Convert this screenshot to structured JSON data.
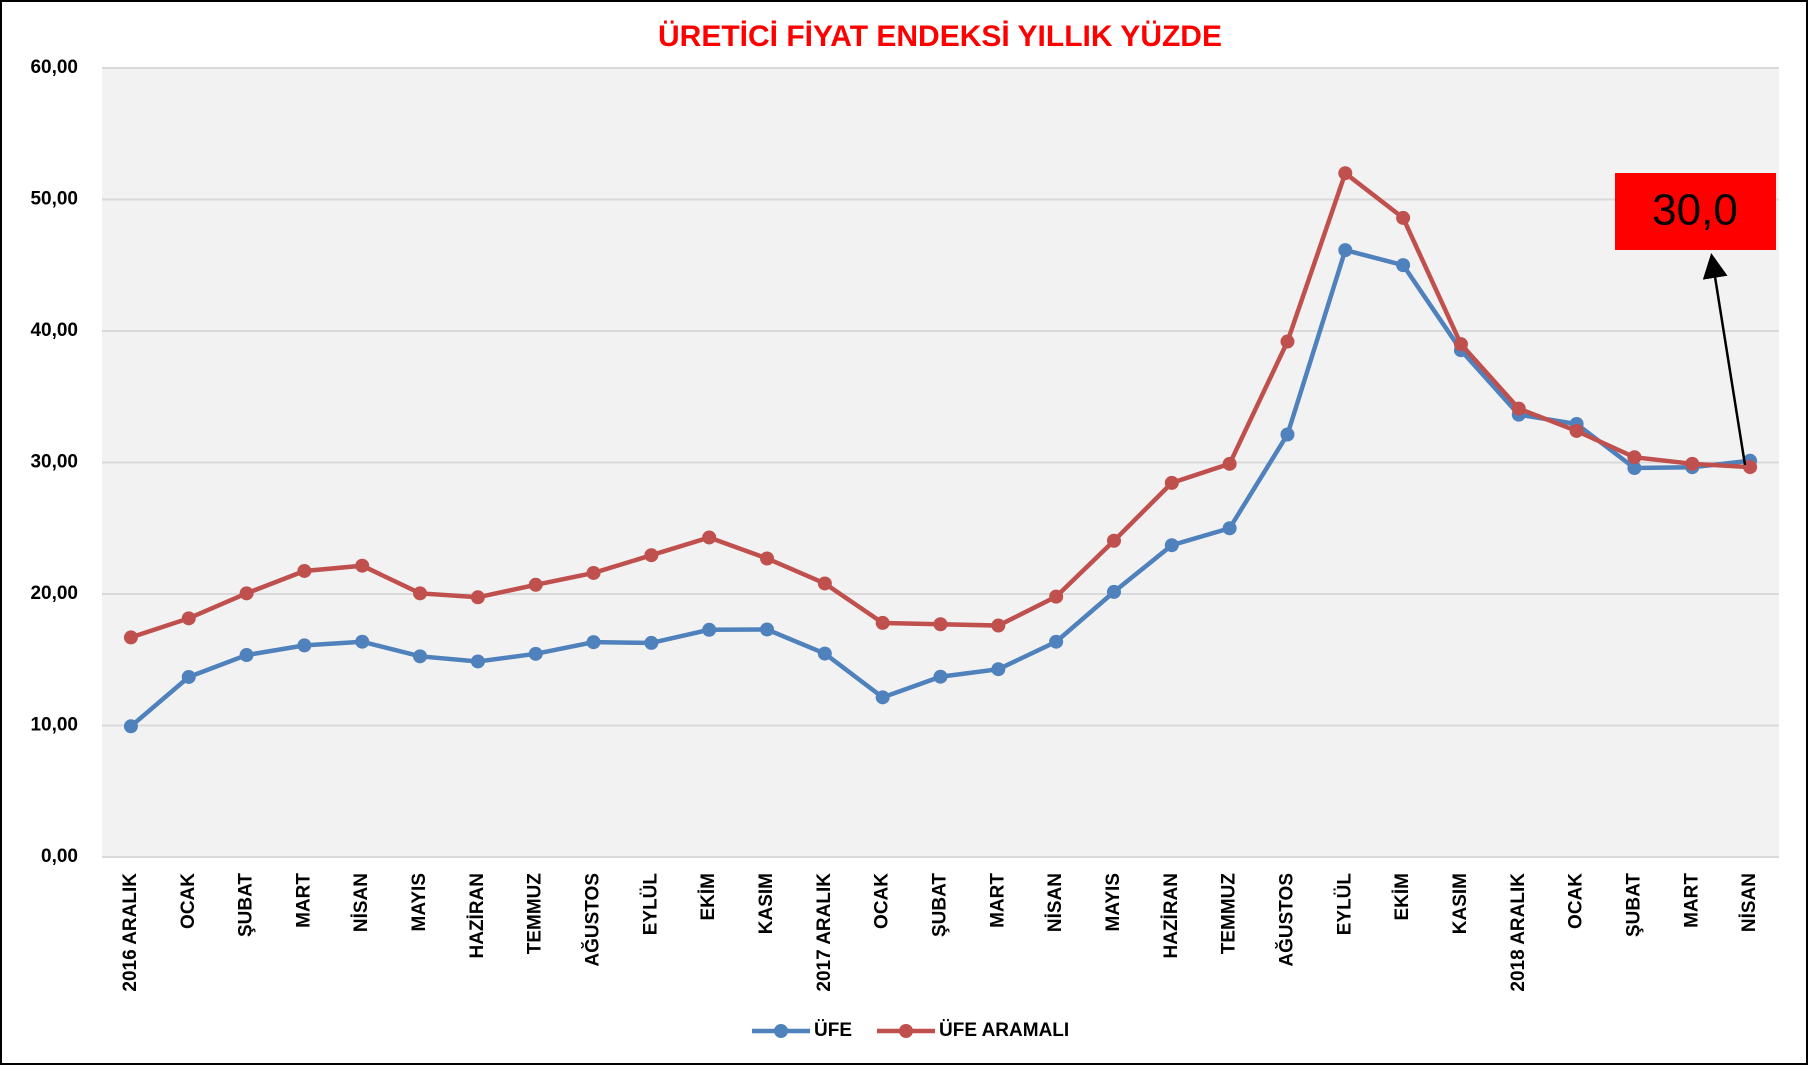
{
  "chart_data": {
    "type": "line",
    "title": "ÜRETİCİ FİYAT ENDEKSİ YILLIK YÜZDE",
    "categories": [
      "2016 ARALIK",
      "OCAK",
      "ŞUBAT",
      "MART",
      "NİSAN",
      "MAYIS",
      "HAZİRAN",
      "TEMMUZ",
      "AĞUSTOS",
      "EYLÜL",
      "EKİM",
      "KASIM",
      "2017 ARALIK",
      "OCAK",
      "ŞUBAT",
      "MART",
      "NİSAN",
      "MAYIS",
      "HAZİRAN",
      "TEMMUZ",
      "AĞUSTOS",
      "EYLÜL",
      "EKİM",
      "KASIM",
      "2018 ARALIK",
      "OCAK",
      "ŞUBAT",
      "MART",
      "NİSAN"
    ],
    "series": [
      {
        "name": "ÜFE",
        "color": "#4f81bd",
        "values": [
          9.94,
          13.69,
          15.36,
          16.09,
          16.37,
          15.26,
          14.87,
          15.45,
          16.34,
          16.28,
          17.28,
          17.3,
          15.47,
          12.14,
          13.71,
          14.28,
          16.37,
          20.16,
          23.71,
          25.0,
          32.13,
          46.15,
          45.01,
          38.54,
          33.64,
          32.93,
          29.58,
          29.64,
          30.13
        ]
      },
      {
        "name": "ÜFE ARAMALI",
        "color": "#c0504d",
        "values": [
          16.7,
          18.15,
          20.05,
          21.75,
          22.15,
          20.05,
          19.75,
          20.7,
          21.6,
          22.95,
          24.3,
          22.7,
          20.8,
          17.8,
          17.7,
          17.6,
          19.8,
          24.05,
          28.45,
          29.9,
          39.2,
          52.0,
          48.6,
          39.0,
          34.1,
          32.4,
          30.4,
          29.9,
          29.65
        ]
      }
    ],
    "ylim": [
      0,
      60
    ],
    "yticks": [
      {
        "value": 0,
        "label": "0,00"
      },
      {
        "value": 10,
        "label": "10,00"
      },
      {
        "value": 20,
        "label": "20,00"
      },
      {
        "value": 30,
        "label": "30,00"
      },
      {
        "value": 40,
        "label": "40,00"
      },
      {
        "value": 50,
        "label": "50,00"
      },
      {
        "value": 60,
        "label": "60,00"
      }
    ],
    "grid": true,
    "legend": "bottom",
    "annotation": "30,0"
  }
}
